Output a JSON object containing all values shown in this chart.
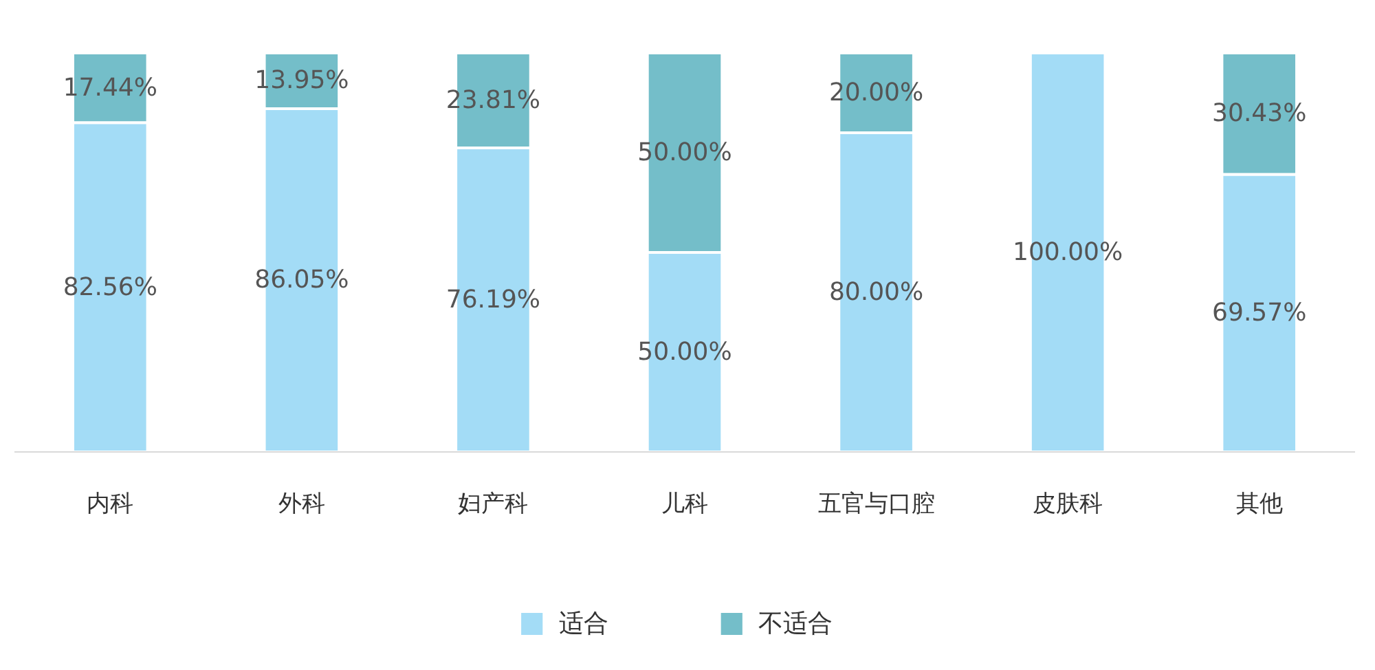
{
  "chart_data": {
    "type": "bar",
    "stacked": true,
    "categories": [
      "内科",
      "外科",
      "妇产科",
      "儿科",
      "五官与口腔",
      "皮肤科",
      "其他"
    ],
    "series": [
      {
        "name": "适合",
        "color": "#a3dcf6",
        "values": [
          82.56,
          86.05,
          76.19,
          50.0,
          80.0,
          100.0,
          69.57
        ],
        "value_labels": [
          "82.56%",
          "86.05%",
          "76.19%",
          "50.00%",
          "80.00%",
          "100.00%",
          "69.57%"
        ]
      },
      {
        "name": "不适合",
        "color": "#74bec9",
        "values": [
          17.44,
          13.95,
          23.81,
          50.0,
          20.0,
          0,
          30.43
        ],
        "value_labels": [
          "17.44%",
          "13.95%",
          "23.81%",
          "50.00%",
          "20.00%",
          null,
          "30.43%"
        ]
      }
    ],
    "legend": "bottom"
  }
}
